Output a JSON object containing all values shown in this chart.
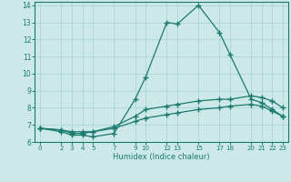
{
  "xlabel": "Humidex (Indice chaleur)",
  "xlim": [
    -0.5,
    23.5
  ],
  "ylim": [
    6,
    14.2
  ],
  "xticks": [
    0,
    2,
    3,
    4,
    5,
    7,
    9,
    10,
    12,
    13,
    15,
    17,
    18,
    20,
    21,
    22,
    23
  ],
  "yticks": [
    6,
    7,
    8,
    9,
    10,
    11,
    12,
    13,
    14
  ],
  "bg_color": "#cce8e8",
  "grid_color": "#b0d8d8",
  "line_color": "#1a7a6e",
  "line1_x": [
    0,
    2,
    3,
    4,
    5,
    7,
    9,
    10,
    12,
    13,
    15,
    17,
    18,
    20,
    21,
    22,
    23
  ],
  "line1_y": [
    6.8,
    6.6,
    6.4,
    6.4,
    6.3,
    6.5,
    8.5,
    9.8,
    13.0,
    12.9,
    14.0,
    12.4,
    11.1,
    8.5,
    8.3,
    7.9,
    7.5
  ],
  "line2_x": [
    0,
    2,
    3,
    4,
    5,
    7,
    9,
    10,
    12,
    13,
    15,
    17,
    18,
    20,
    21,
    22,
    23
  ],
  "line2_y": [
    6.8,
    6.7,
    6.6,
    6.6,
    6.6,
    6.9,
    7.5,
    7.9,
    8.1,
    8.2,
    8.4,
    8.5,
    8.5,
    8.7,
    8.6,
    8.4,
    8.0
  ],
  "line3_x": [
    0,
    2,
    3,
    4,
    5,
    7,
    9,
    10,
    12,
    13,
    15,
    17,
    18,
    20,
    21,
    22,
    23
  ],
  "line3_y": [
    6.8,
    6.7,
    6.5,
    6.5,
    6.6,
    6.8,
    7.2,
    7.4,
    7.6,
    7.7,
    7.9,
    8.0,
    8.1,
    8.2,
    8.1,
    7.8,
    7.5
  ]
}
